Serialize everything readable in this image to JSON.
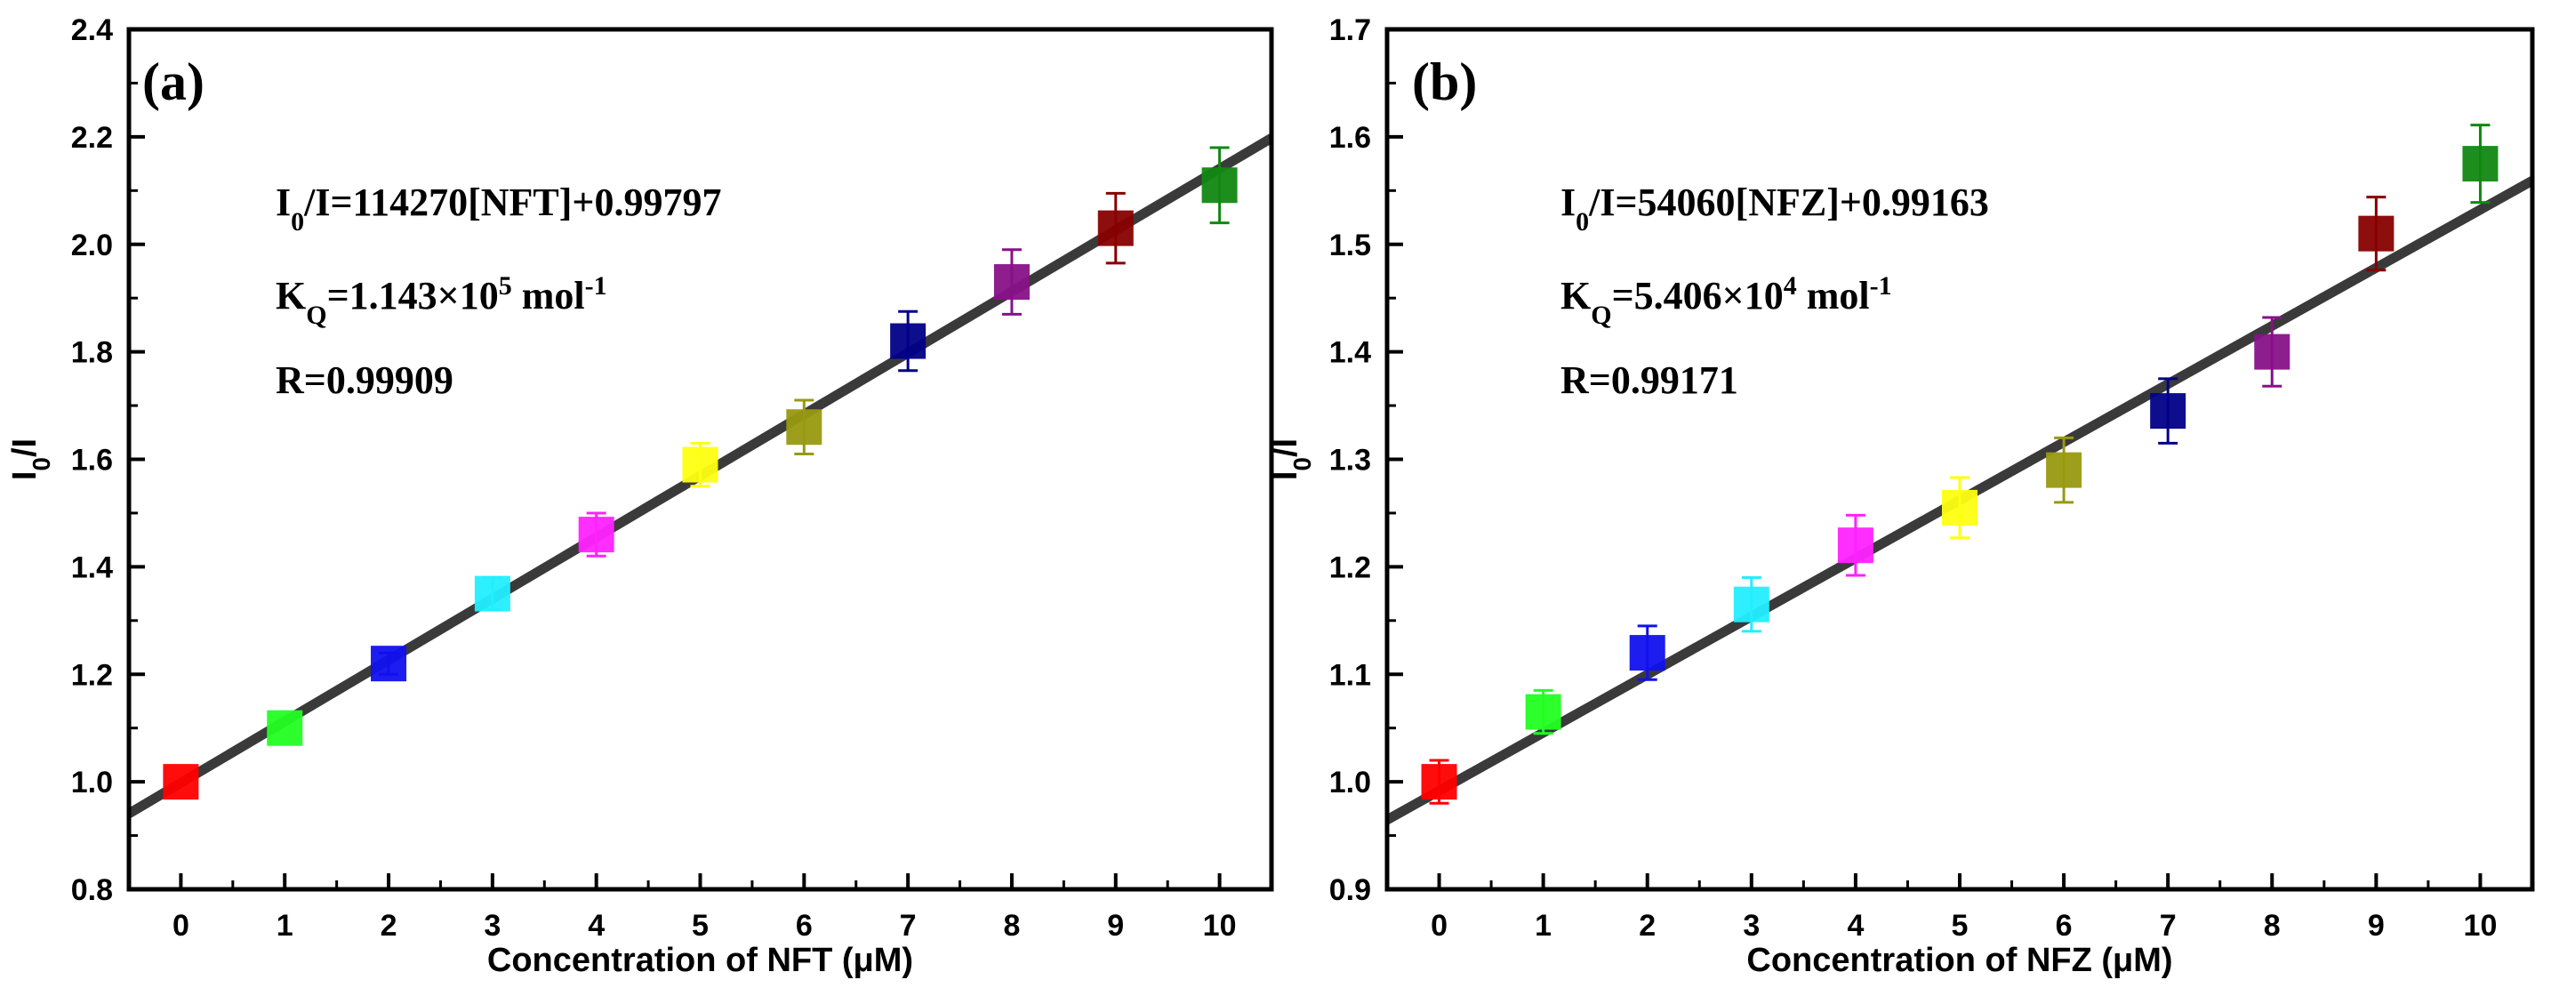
{
  "chart_data": [
    {
      "type": "scatter",
      "panel_label": "(a)",
      "title": "",
      "xlabel": "Concentration of NFT (μM)",
      "ylabel": "I0/I",
      "ylabel_parts": {
        "main": "I",
        "sub": "0",
        "rest": "/I"
      },
      "xlim": [
        -0.5,
        10.5
      ],
      "ylim": [
        0.8,
        2.4
      ],
      "x_ticks": [
        0,
        1,
        2,
        3,
        4,
        5,
        6,
        7,
        8,
        9,
        10
      ],
      "y_ticks": [
        0.8,
        1.0,
        1.2,
        1.4,
        1.6,
        1.8,
        2.0,
        2.2,
        2.4
      ],
      "y_tick_labels": [
        "0.8",
        "1.0",
        "1.2",
        "1.4",
        "1.6",
        "1.8",
        "2.0",
        "2.2",
        "2.4"
      ],
      "x": [
        0,
        1,
        2,
        3,
        4,
        5,
        6,
        7,
        8,
        9,
        10
      ],
      "y": [
        1.0,
        1.1,
        1.22,
        1.35,
        1.46,
        1.59,
        1.66,
        1.82,
        1.93,
        2.03,
        2.11
      ],
      "error": [
        0.0,
        0.0,
        0.02,
        0.03,
        0.04,
        0.04,
        0.05,
        0.055,
        0.06,
        0.065,
        0.07
      ],
      "point_colors": [
        "#ff0000",
        "#22ff22",
        "#1111ee",
        "#22eeff",
        "#ff22ff",
        "#ffff11",
        "#999911",
        "#000088",
        "#881188",
        "#880000",
        "#118811"
      ],
      "fit": {
        "slope": 0.11427,
        "intercept": 0.99797,
        "color": "#3a3a3a"
      },
      "annotations": [
        {
          "main": "I",
          "sub": "0",
          "rest": "/I=114270[NFT]+0.99797"
        },
        {
          "main": "K",
          "sub": "Q",
          "rest": "=1.143×10",
          "sup": "5",
          "tail": " mol",
          "tail_sup": "-1"
        },
        {
          "main": "R=0.99909"
        }
      ]
    },
    {
      "type": "scatter",
      "panel_label": "(b)",
      "title": "",
      "xlabel": "Concentration of NFZ (μM)",
      "ylabel": "I0/I",
      "ylabel_parts": {
        "main": "I",
        "sub": "0",
        "rest": "/I"
      },
      "xlim": [
        -0.5,
        10.5
      ],
      "ylim": [
        0.9,
        1.7
      ],
      "x_ticks": [
        0,
        1,
        2,
        3,
        4,
        5,
        6,
        7,
        8,
        9,
        10
      ],
      "y_ticks": [
        0.9,
        1.0,
        1.1,
        1.2,
        1.3,
        1.4,
        1.5,
        1.6,
        1.7
      ],
      "y_tick_labels": [
        "0.9",
        "1.0",
        "1.1",
        "1.2",
        "1.3",
        "1.4",
        "1.5",
        "1.6",
        "1.7"
      ],
      "x": [
        0,
        1,
        2,
        3,
        4,
        5,
        6,
        7,
        8,
        9,
        10
      ],
      "y": [
        1.0,
        1.065,
        1.12,
        1.165,
        1.22,
        1.255,
        1.29,
        1.345,
        1.4,
        1.51,
        1.575
      ],
      "error": [
        0.02,
        0.02,
        0.025,
        0.025,
        0.028,
        0.028,
        0.03,
        0.03,
        0.032,
        0.034,
        0.036
      ],
      "point_colors": [
        "#ff0000",
        "#22ff22",
        "#1111ee",
        "#22eeff",
        "#ff22ff",
        "#ffff11",
        "#999911",
        "#000088",
        "#881188",
        "#880000",
        "#118811"
      ],
      "fit": {
        "slope": 0.05406,
        "intercept": 0.99163,
        "color": "#3a3a3a"
      },
      "annotations": [
        {
          "main": "I",
          "sub": "0",
          "rest": "/I=54060[NFZ]+0.99163"
        },
        {
          "main": "K",
          "sub": "Q",
          "rest": "=5.406×10",
          "sup": "4",
          "tail": " mol",
          "tail_sup": "-1"
        },
        {
          "main": "R=0.99171"
        }
      ]
    }
  ]
}
